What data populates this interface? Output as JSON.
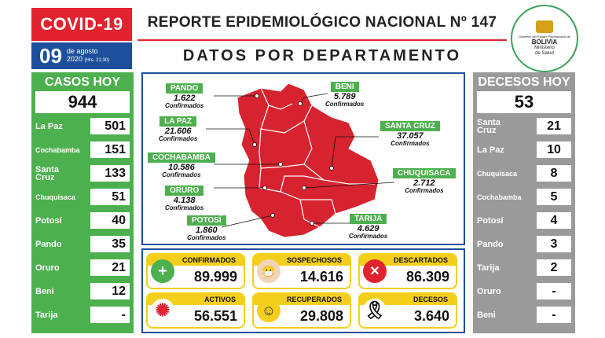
{
  "header": {
    "badge": "COVID-19",
    "title": "REPORTE EPIDEMIOLÓGICO NACIONAL Nº 147",
    "subtitle": "DATOS POR DEPARTAMENTO",
    "date_day": "09",
    "date_month": "de agosto",
    "date_year": "2020",
    "date_time": "(Hrs. 21:30)"
  },
  "seal": {
    "line1": "Gobierno del Estado Plurinacional de",
    "country": "BOLIVIA",
    "ministry1": "Ministerio",
    "ministry2": "de Salud"
  },
  "cases_today": {
    "title": "CASOS HOY",
    "total": "944",
    "rows": [
      {
        "label": "La Paz",
        "value": "501"
      },
      {
        "label": "Cochabamba",
        "value": "151"
      },
      {
        "label": "Santa Cruz",
        "value": "133"
      },
      {
        "label": "Chuquisaca",
        "value": "51"
      },
      {
        "label": "Potosí",
        "value": "40"
      },
      {
        "label": "Pando",
        "value": "35"
      },
      {
        "label": "Oruro",
        "value": "21"
      },
      {
        "label": "Beni",
        "value": "12"
      },
      {
        "label": "Tarija",
        "value": "-"
      }
    ]
  },
  "deaths_today": {
    "title": "DECESOS HOY",
    "total": "53",
    "rows": [
      {
        "label": "Santa Cruz",
        "value": "21"
      },
      {
        "label": "La Paz",
        "value": "10"
      },
      {
        "label": "Chuquisaca",
        "value": "8"
      },
      {
        "label": "Cochabamba",
        "value": "5"
      },
      {
        "label": "Potosí",
        "value": "4"
      },
      {
        "label": "Pando",
        "value": "3"
      },
      {
        "label": "Tarija",
        "value": "2"
      },
      {
        "label": "Oruro",
        "value": "-"
      },
      {
        "label": "Beni",
        "value": "-"
      }
    ]
  },
  "map": {
    "confirmed_label": "Confirmados",
    "departments": [
      {
        "name": "PANDO",
        "value": "1.622"
      },
      {
        "name": "BENI",
        "value": "5.789"
      },
      {
        "name": "LA PAZ",
        "value": "21.606"
      },
      {
        "name": "SANTA CRUZ",
        "value": "37.057"
      },
      {
        "name": "COCHABAMBA",
        "value": "10.586"
      },
      {
        "name": "CHUQUISACA",
        "value": "2.712"
      },
      {
        "name": "ORURO",
        "value": "4.138"
      },
      {
        "name": "POTOSÍ",
        "value": "1.860"
      },
      {
        "name": "TARIJA",
        "value": "4.629"
      }
    ]
  },
  "totals": [
    {
      "label": "CONFIRMADOS",
      "value": "89.999",
      "icon": "plus-icon"
    },
    {
      "label": "SOSPECHOSOS",
      "value": "14.616",
      "icon": "mask-face-icon"
    },
    {
      "label": "DESCARTADOS",
      "value": "86.309",
      "icon": "x-circle-icon"
    },
    {
      "label": "ACTIVOS",
      "value": "56.551",
      "icon": "virus-icon"
    },
    {
      "label": "RECUPERADOS",
      "value": "29.808",
      "icon": "smile-icon"
    },
    {
      "label": "DECESOS",
      "value": "3.640",
      "icon": "mourning-ribbon-icon"
    }
  ],
  "colors": {
    "red": "#e2222f",
    "blue": "#1e4f9c",
    "green": "#4db04e",
    "gray": "#9a9a9a",
    "yellow": "#f3cf1b",
    "map_red": "#d6232f"
  }
}
